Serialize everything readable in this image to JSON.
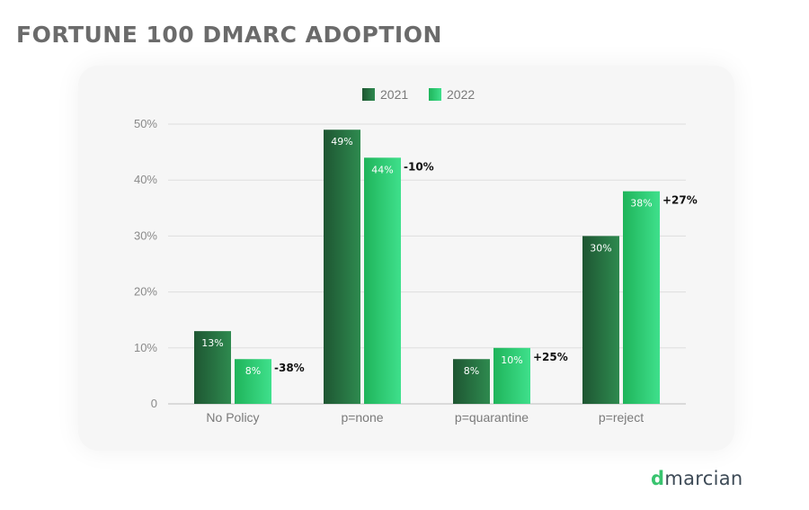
{
  "title": "FORTUNE 100 DMARC ADOPTION",
  "logo": {
    "prefix": "d",
    "rest": "marcian",
    "accent": "#39c46f"
  },
  "chart_data": {
    "type": "bar",
    "categories": [
      "No Policy",
      "p=none",
      "p=quarantine",
      "p=reject"
    ],
    "series": [
      {
        "name": "2021",
        "values": [
          13,
          49,
          8,
          30
        ],
        "labels": [
          "13%",
          "49%",
          "8%",
          "30%"
        ],
        "color_start": "#1e5632",
        "color_end": "#2e8a4f"
      },
      {
        "name": "2022",
        "values": [
          8,
          44,
          10,
          38
        ],
        "labels": [
          "8%",
          "44%",
          "10%",
          "38%"
        ],
        "color_start": "#1fb45a",
        "color_end": "#3fe08c"
      }
    ],
    "changes": [
      "-38%",
      "-10%",
      "+25%",
      "+27%"
    ],
    "ylim": [
      0,
      50
    ],
    "yticks": [
      0,
      10,
      20,
      30,
      40,
      50
    ],
    "ytick_labels": [
      "0",
      "10%",
      "20%",
      "30%",
      "40%",
      "50%"
    ],
    "legend_position": "top-center",
    "grid": true
  }
}
